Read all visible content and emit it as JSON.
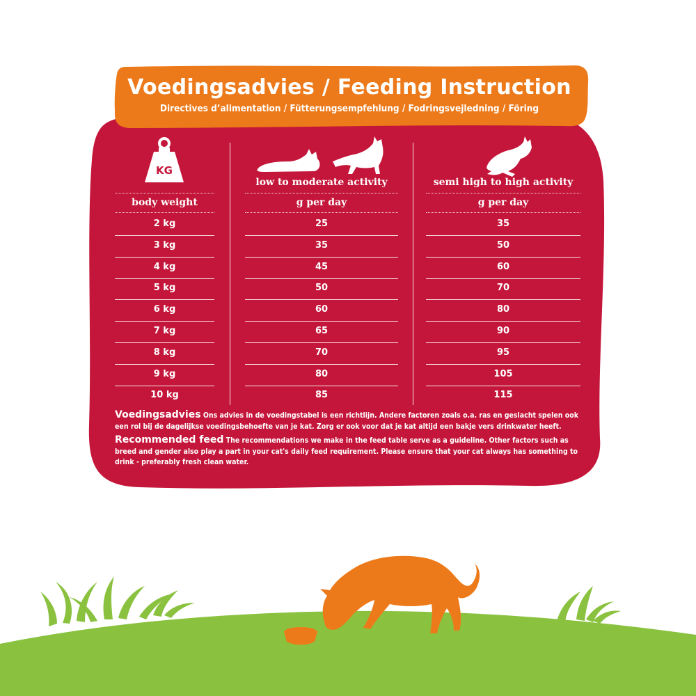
{
  "header": {
    "title": "Voedingsadvies / Feeding Instruction",
    "subtitle": "Directives d’alimentation / Fütterungsempfehlung / Fodringsvejledning / Föring"
  },
  "table": {
    "weight_icon_label": "KG",
    "columns": [
      {
        "label": "",
        "unit": "body weight"
      },
      {
        "label": "low to moderate activity",
        "unit": "g per day"
      },
      {
        "label": "semi high to high activity",
        "unit": "g per day"
      }
    ],
    "rows": [
      {
        "weight": "2 kg",
        "low": "25",
        "high": "35"
      },
      {
        "weight": "3 kg",
        "low": "35",
        "high": "50"
      },
      {
        "weight": "4 kg",
        "low": "45",
        "high": "60"
      },
      {
        "weight": "5 kg",
        "low": "50",
        "high": "70"
      },
      {
        "weight": "6 kg",
        "low": "60",
        "high": "80"
      },
      {
        "weight": "7 kg",
        "low": "65",
        "high": "90"
      },
      {
        "weight": "8 kg",
        "low": "70",
        "high": "95"
      },
      {
        "weight": "9 kg",
        "low": "80",
        "high": "105"
      },
      {
        "weight": "10 kg",
        "low": "85",
        "high": "115"
      }
    ]
  },
  "notes": {
    "nl_lead": "Voedingsadvies",
    "nl_text": "Ons advies in de voedingstabel is een richtlijn. Andere factoren zoals o.a. ras en geslacht spelen ook een rol bij de dagelijkse voedingsbehoefte van je kat. Zorg er ook voor dat je kat altijd een bakje vers drinkwater heeft.",
    "en_lead": "Recommended feed",
    "en_text": "The recommendations we make in the feed table serve as a guideline. Other factors such as breed and gender also play a part in your cat's daily feed requirement. Please ensure that your cat always has something to drink - preferably fresh clean water."
  },
  "colors": {
    "card": "#c4163a",
    "header": "#ed7a1a",
    "grass": "#8ac240",
    "cat": "#ed7a1a"
  }
}
